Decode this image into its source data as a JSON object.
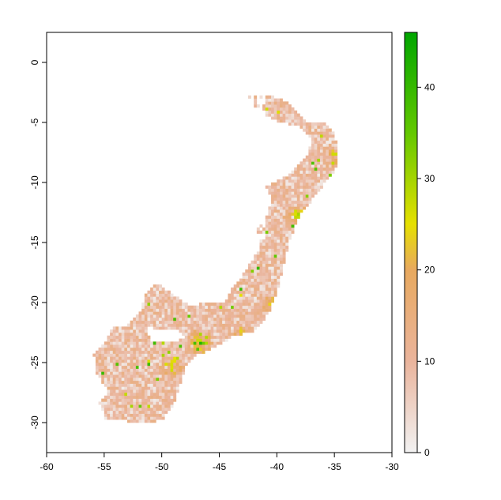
{
  "chart_data": {
    "type": "heatmap",
    "title": "",
    "xlabel": "",
    "ylabel": "",
    "xlim": [
      -60,
      -30
    ],
    "ylim": [
      -32.5,
      2.5
    ],
    "x_ticks": [
      -60,
      -55,
      -50,
      -45,
      -40,
      -35,
      -30
    ],
    "x_tick_labels": [
      "-60",
      "-55",
      "-50",
      "-45",
      "-40",
      "-35",
      "-30"
    ],
    "y_ticks": [
      0,
      -5,
      -10,
      -15,
      -20,
      -25,
      -30
    ],
    "y_tick_labels": [
      "0",
      "-5",
      "-10",
      "-15",
      "-20",
      "-25",
      "-30"
    ],
    "legend": {
      "placement": "right",
      "min": 0,
      "max": 46,
      "ticks": [
        0,
        10,
        20,
        30,
        40
      ],
      "tick_labels": [
        "0",
        "10",
        "20",
        "30",
        "40"
      ],
      "color_stops": [
        {
          "value": 0,
          "color": "#f2f2f2"
        },
        {
          "value": 10,
          "color": "#eab49c"
        },
        {
          "value": 20,
          "color": "#e8a95f"
        },
        {
          "value": 25,
          "color": "#e6e000"
        },
        {
          "value": 35,
          "color": "#63c800"
        },
        {
          "value": 46,
          "color": "#00a600"
        }
      ]
    },
    "map_region": {
      "description_value_range": [
        0,
        46
      ],
      "outline_lonlat": [
        [
          -42.5,
          -3.0
        ],
        [
          -41.0,
          -2.8
        ],
        [
          -39.5,
          -3.3
        ],
        [
          -38.5,
          -4.0
        ],
        [
          -37.5,
          -5.0
        ],
        [
          -35.8,
          -5.2
        ],
        [
          -35.1,
          -6.0
        ],
        [
          -34.8,
          -7.5
        ],
        [
          -35.0,
          -9.0
        ],
        [
          -35.8,
          -10.0
        ],
        [
          -37.0,
          -11.5
        ],
        [
          -38.2,
          -13.0
        ],
        [
          -39.0,
          -15.0
        ],
        [
          -39.5,
          -17.0
        ],
        [
          -40.0,
          -19.0
        ],
        [
          -40.8,
          -21.0
        ],
        [
          -42.0,
          -22.5
        ],
        [
          -44.0,
          -23.0
        ],
        [
          -45.5,
          -23.8
        ],
        [
          -47.0,
          -24.5
        ],
        [
          -48.0,
          -25.5
        ],
        [
          -48.5,
          -27.0
        ],
        [
          -49.0,
          -28.5
        ],
        [
          -50.0,
          -29.8
        ],
        [
          -51.0,
          -30.2
        ],
        [
          -53.0,
          -30.0
        ],
        [
          -55.0,
          -29.8
        ],
        [
          -55.5,
          -28.5
        ],
        [
          -54.8,
          -27.5
        ],
        [
          -55.8,
          -26.0
        ],
        [
          -56.0,
          -24.5
        ],
        [
          -55.0,
          -23.5
        ],
        [
          -54.5,
          -22.3
        ],
        [
          -53.0,
          -22.0
        ],
        [
          -52.0,
          -21.0
        ],
        [
          -51.5,
          -19.5
        ],
        [
          -50.5,
          -18.5
        ],
        [
          -49.0,
          -19.5
        ],
        [
          -47.5,
          -20.5
        ],
        [
          -46.0,
          -20.0
        ],
        [
          -44.5,
          -19.5
        ],
        [
          -43.5,
          -18.5
        ],
        [
          -42.5,
          -17.0
        ],
        [
          -41.5,
          -15.5
        ],
        [
          -41.8,
          -14.0
        ],
        [
          -41.0,
          -13.0
        ],
        [
          -40.5,
          -11.5
        ],
        [
          -41.0,
          -10.5
        ],
        [
          -39.0,
          -9.5
        ],
        [
          -37.5,
          -8.0
        ],
        [
          -37.0,
          -6.5
        ],
        [
          -38.0,
          -5.5
        ],
        [
          -40.0,
          -5.0
        ],
        [
          -42.0,
          -4.0
        ]
      ]
    }
  }
}
